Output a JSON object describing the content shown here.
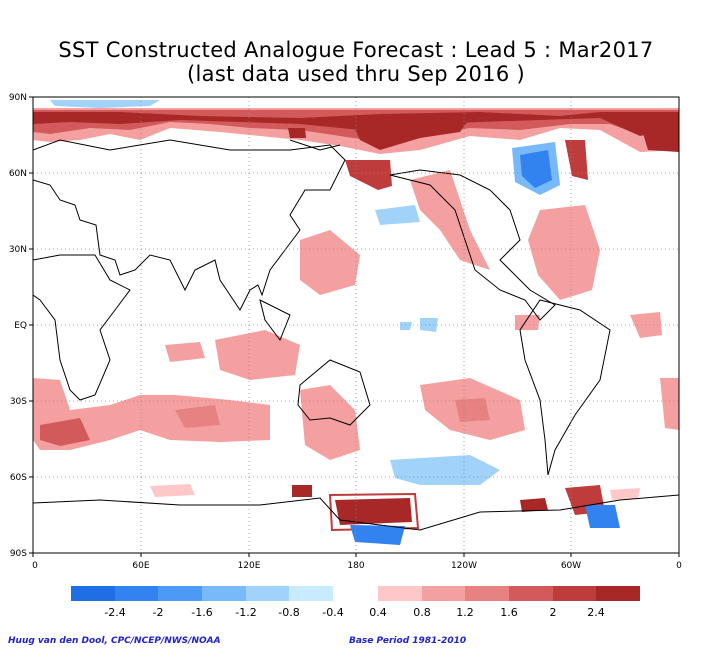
{
  "title_line_1": "SST Constructed Analogue Forecast : Lead 5 : Mar2017",
  "title_line_2": "(last data used thru Sep 2016 )",
  "lat_labels": [
    "90N",
    "60N",
    "30N",
    "EQ",
    "30S",
    "60S",
    "90S"
  ],
  "lon_labels": [
    "0",
    "60E",
    "120E",
    "180",
    "120W",
    "60W",
    "0"
  ],
  "colorbar": {
    "negative_labels": [
      "-2.4",
      "-2",
      "-1.6",
      "-1.2",
      "-0.8",
      "-0.4"
    ],
    "positive_labels": [
      "0.4",
      "0.8",
      "1.2",
      "1.6",
      "2",
      "2.4"
    ],
    "negative_colors": [
      "#1e6ee6",
      "#3282f0",
      "#4b9bf5",
      "#78b9fa",
      "#a0d2fa",
      "#c8ebff"
    ],
    "positive_colors": [
      "#ffc8c8",
      "#f5a0a0",
      "#e68282",
      "#d25a5a",
      "#be3c3c",
      "#a82828"
    ]
  },
  "credit_left": "Huug van den Dool, CPC/NCEP/NWS/NOAA",
  "credit_right": "Base Period 1981-2010"
}
